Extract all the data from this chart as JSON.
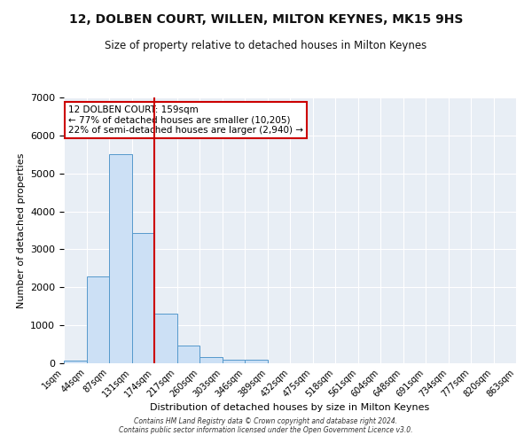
{
  "title": "12, DOLBEN COURT, WILLEN, MILTON KEYNES, MK15 9HS",
  "subtitle": "Size of property relative to detached houses in Milton Keynes",
  "xlabel": "Distribution of detached houses by size in Milton Keynes",
  "ylabel": "Number of detached properties",
  "bin_labels": [
    "1sqm",
    "44sqm",
    "87sqm",
    "131sqm",
    "174sqm",
    "217sqm",
    "260sqm",
    "303sqm",
    "346sqm",
    "389sqm",
    "432sqm",
    "475sqm",
    "518sqm",
    "561sqm",
    "604sqm",
    "648sqm",
    "691sqm",
    "734sqm",
    "777sqm",
    "820sqm",
    "863sqm"
  ],
  "bar_values": [
    75,
    2280,
    5500,
    3420,
    1310,
    460,
    165,
    90,
    85,
    0,
    0,
    0,
    0,
    0,
    0,
    0,
    0,
    0,
    0,
    0
  ],
  "bar_color": "#cce0f5",
  "bar_edge_color": "#5599cc",
  "vline_x": 4,
  "vline_color": "#cc0000",
  "annotation_text": "12 DOLBEN COURT: 159sqm\n← 77% of detached houses are smaller (10,205)\n22% of semi-detached houses are larger (2,940) →",
  "annotation_box_color": "#ffffff",
  "annotation_box_edge": "#cc0000",
  "ylim": [
    0,
    7000
  ],
  "yticks": [
    0,
    1000,
    2000,
    3000,
    4000,
    5000,
    6000,
    7000
  ],
  "bg_color": "#e8eef5",
  "grid_color": "#ffffff",
  "footer_line1": "Contains HM Land Registry data © Crown copyright and database right 2024.",
  "footer_line2": "Contains public sector information licensed under the Open Government Licence v3.0."
}
